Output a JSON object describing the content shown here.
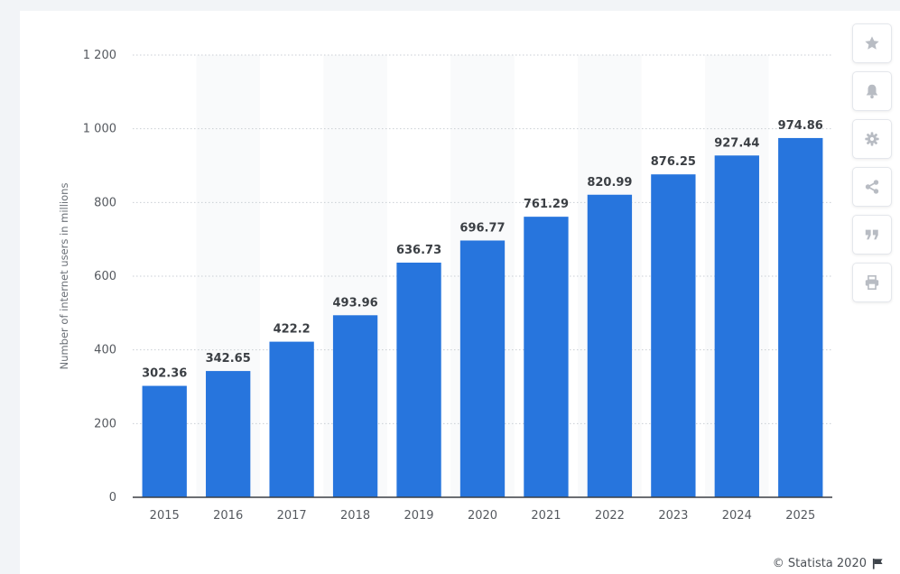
{
  "chart_data": {
    "type": "bar",
    "categories": [
      "2015",
      "2016",
      "2017",
      "2018",
      "2019",
      "2020",
      "2021",
      "2022",
      "2023",
      "2024",
      "2025"
    ],
    "values": [
      302.36,
      342.65,
      422.2,
      493.96,
      636.73,
      696.77,
      761.29,
      820.99,
      876.25,
      927.44,
      974.86
    ],
    "value_labels": [
      "302.36",
      "342.65",
      "422.2",
      "493.96",
      "636.73",
      "696.77",
      "761.29",
      "820.99",
      "876.25",
      "927.44",
      "974.86"
    ],
    "ylabel": "Number of internet users in millions",
    "ylim": [
      0,
      1200
    ],
    "yticks": [
      0,
      200,
      400,
      600,
      800,
      1000,
      1200
    ],
    "ytick_labels": [
      "0",
      "200",
      "400",
      "600",
      "800",
      "1 000",
      "1 200"
    ],
    "grid": true,
    "bar_color": "#2775dd",
    "band_color": "#f9fafb"
  },
  "toolbar": {
    "icons": [
      "star-icon",
      "bell-icon",
      "gear-icon",
      "share-icon",
      "quote-icon",
      "print-icon"
    ],
    "icon_color": "#b8bcc3"
  },
  "credit": {
    "text": "© Statista 2020",
    "icon": "flag-icon"
  }
}
